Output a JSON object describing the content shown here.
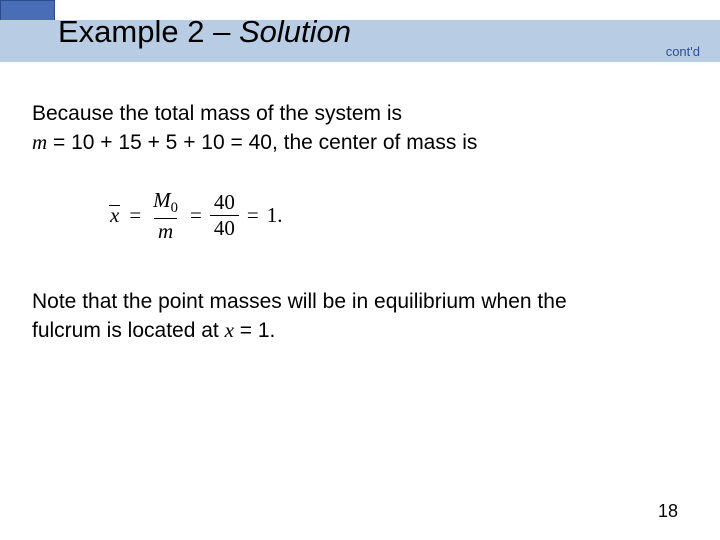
{
  "header": {
    "title_prefix": "Example 2 – ",
    "title_emph": "Solution",
    "contd": "cont'd"
  },
  "body": {
    "line1": "Because the total mass of the system is",
    "line2_m": "m",
    "line2_rest": " = 10 + 15 + 5 + 10 = 40, the center of mass is",
    "formula": {
      "xbar": "x",
      "eq1": "=",
      "frac1_num_M": "M",
      "frac1_num_sub": "0",
      "frac1_den": "m",
      "eq2": "=",
      "frac2_num": "40",
      "frac2_den": "40",
      "eq3": "=",
      "result": "1."
    },
    "note1": "Note that the point masses will be in equilibrium when the",
    "note2_a": "fulcrum is located at ",
    "note2_x": "x",
    "note2_b": " = 1."
  },
  "page_number": "18",
  "colors": {
    "header_band": "#b8cce4",
    "corner_block": "#4a6db8",
    "contd_text": "#305090",
    "background": "#ffffff"
  }
}
